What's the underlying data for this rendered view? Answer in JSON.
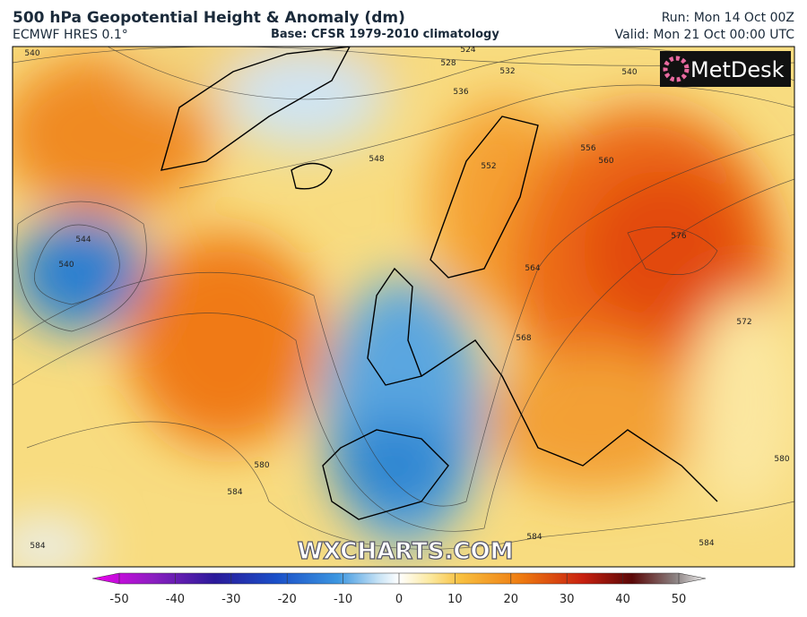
{
  "header": {
    "title": "500 hPa Geopotential Height & Anomaly (dm)",
    "model": "ECMWF HRES 0.1°",
    "base": "Base: CFSR 1979-2010 climatology",
    "run": "Run: Mon 14 Oct 00Z",
    "valid": "Valid: Mon 21 Oct 00:00 UTC"
  },
  "map": {
    "logo": "MetDesk",
    "watermark": "WXCHARTS.COM",
    "contour_labels": [
      "540",
      "524",
      "528",
      "532",
      "536",
      "540",
      "548",
      "552",
      "556",
      "560",
      "576",
      "544",
      "540",
      "572",
      "568",
      "564",
      "580",
      "584",
      "584",
      "584",
      "584",
      "580"
    ]
  },
  "colorbar": {
    "ticks": [
      -50,
      -40,
      -30,
      -20,
      -10,
      0,
      10,
      20,
      30,
      40,
      50
    ]
  }
}
